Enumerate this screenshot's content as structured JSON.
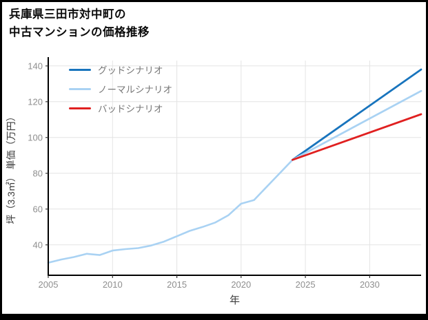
{
  "header": {
    "title_line1": "兵庫県三田市対中町の",
    "title_line2": "中古マンションの価格推移"
  },
  "chart_data": {
    "type": "line",
    "title": "兵庫県三田市対中町の中古マンションの価格推移",
    "xlabel": "年",
    "ylabel": "坪（3.3㎡） 単価（万円）",
    "xlim": [
      2005,
      2034
    ],
    "ylim": [
      23,
      143
    ],
    "xticks": [
      2005,
      2010,
      2015,
      2020,
      2025,
      2030
    ],
    "yticks": [
      40,
      60,
      80,
      100,
      120,
      140
    ],
    "grid": true,
    "legend_position": "upper-left",
    "style": {
      "grid_color": "#e4e4e4",
      "spine_color": "#000000",
      "tick_mark_color": "#333333",
      "tick_label_color": "#8e8e8e",
      "axis_label_color": "#3c3c3c",
      "legend_text_color": "#777777",
      "background": "#ffffff"
    },
    "series": [
      {
        "key": "historical",
        "name": "",
        "in_legend": false,
        "color": "#a9d2f3",
        "width": 2.6,
        "x": [
          2005,
          2006,
          2007,
          2008,
          2009,
          2010,
          2011,
          2012,
          2013,
          2014,
          2015,
          2016,
          2017,
          2018,
          2019,
          2020,
          2021,
          2022,
          2023,
          2024
        ],
        "values": [
          30.0,
          31.8,
          33.2,
          35.0,
          34.3,
          36.8,
          37.6,
          38.2,
          39.6,
          41.8,
          44.8,
          47.8,
          50.0,
          52.5,
          56.5,
          63.0,
          65.0,
          72.5,
          80.0,
          87.5
        ]
      },
      {
        "key": "good",
        "name": "グッドシナリオ",
        "in_legend": true,
        "color": "#1874bd",
        "width": 2.8,
        "x": [
          2024,
          2034
        ],
        "values": [
          87.5,
          138
        ]
      },
      {
        "key": "normal",
        "name": "ノーマルシナリオ",
        "in_legend": true,
        "color": "#a9d2f3",
        "width": 2.8,
        "x": [
          2024,
          2034
        ],
        "values": [
          87.5,
          126
        ]
      },
      {
        "key": "bad",
        "name": "バッドシナリオ",
        "in_legend": true,
        "color": "#e02020",
        "width": 2.8,
        "x": [
          2024,
          2034
        ],
        "values": [
          87.5,
          113
        ]
      }
    ]
  }
}
